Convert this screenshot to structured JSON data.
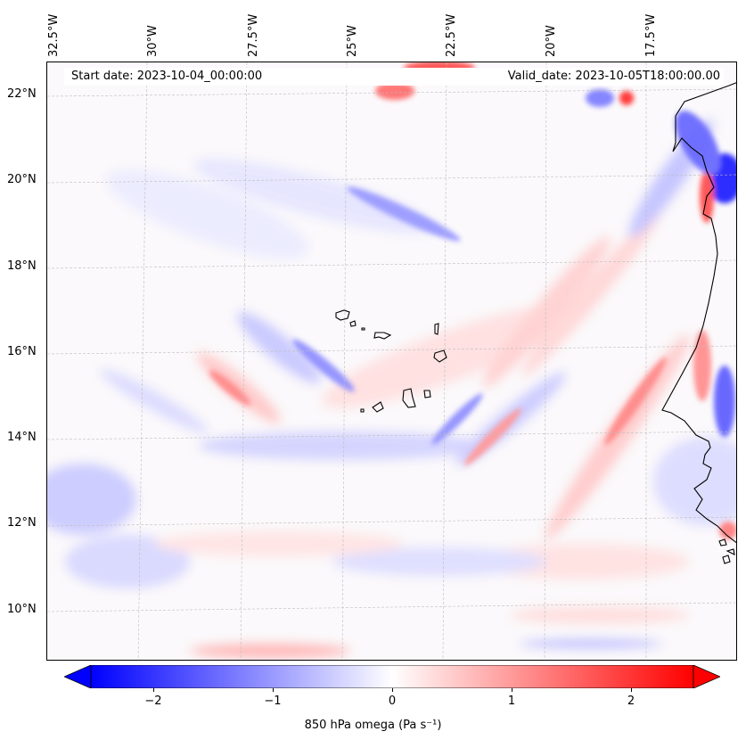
{
  "map": {
    "title_start": "Start date: 2023-10-04_00:00:00",
    "title_valid": "Valid_date: 2023-10-05T18:00:00.00",
    "longitude_labels": [
      "32.5°W",
      "30°W",
      "27.5°W",
      "25°W",
      "22.5°W",
      "20°W",
      "17.5°W"
    ],
    "latitude_labels": [
      "22°N",
      "20°N",
      "18°N",
      "16°N",
      "14°N",
      "12°N",
      "10°N"
    ],
    "field": "850 hPa omega",
    "colormap": "bwr",
    "colors": {
      "negative": "#0000ff",
      "zero": "#ffffff",
      "positive": "#ff0000",
      "coastline": "#000000",
      "gridline": "#bdbdbd"
    }
  },
  "colorbar": {
    "label": "850 hPa omega (Pa s⁻¹)",
    "ticks": [
      "−2",
      "−1",
      "0",
      "1",
      "2"
    ],
    "range": [
      -2.5,
      2.5
    ],
    "extend": "both"
  }
}
